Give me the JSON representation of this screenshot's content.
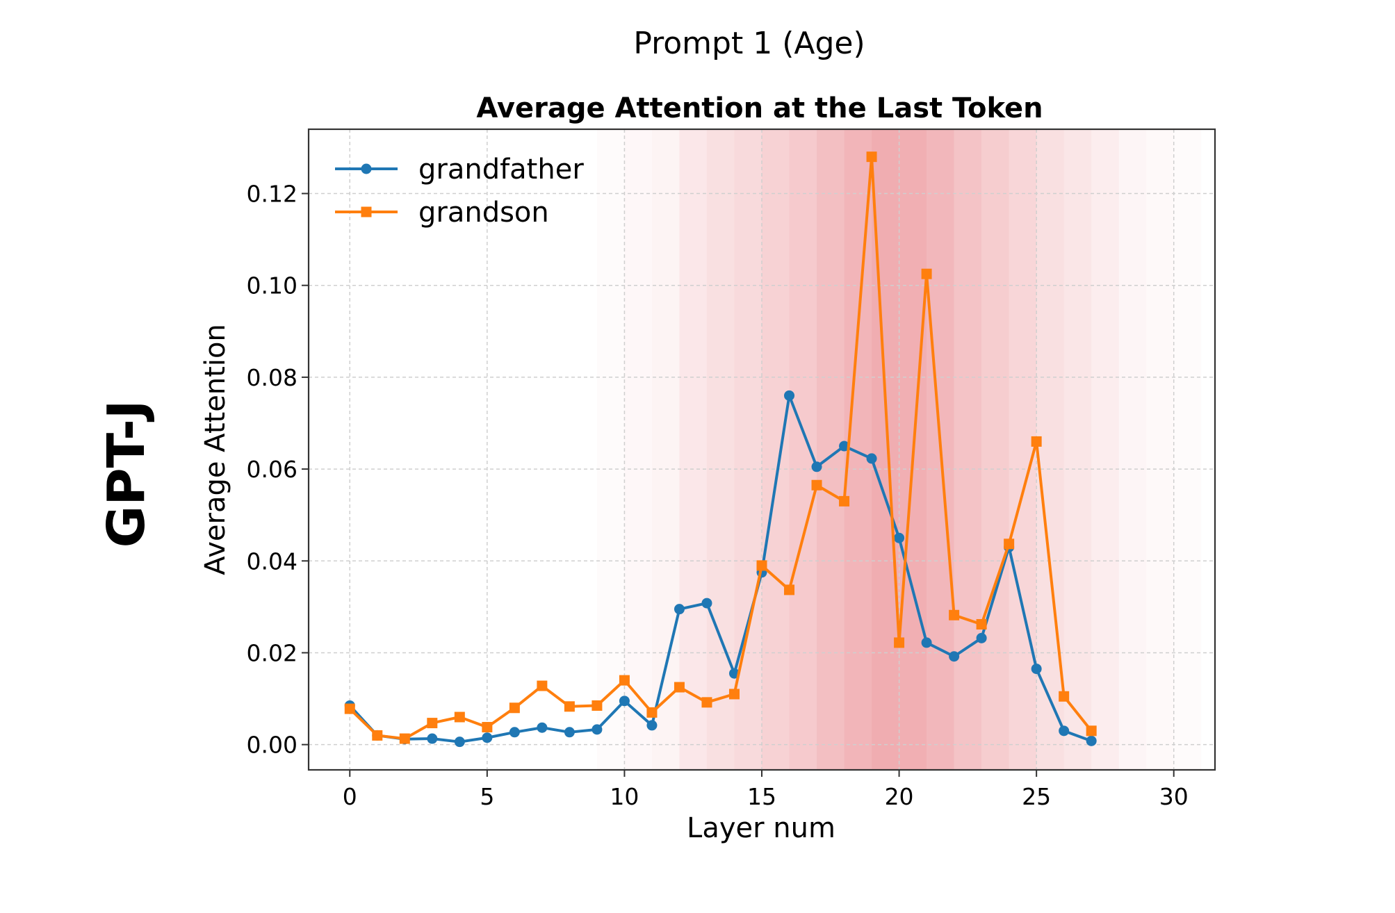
{
  "figure": {
    "title": "Prompt 1 (Age)",
    "row_label": "GPT-J"
  },
  "chart_data": {
    "type": "line",
    "title": "Average Attention at the Last Token",
    "xlabel": "Layer num",
    "ylabel": "Average Attention",
    "xlim": [
      -1.5,
      31.5
    ],
    "ylim": [
      -0.0055,
      0.134
    ],
    "xticks": [
      0,
      5,
      10,
      15,
      20,
      25,
      30
    ],
    "xtick_labels": [
      "0",
      "5",
      "10",
      "15",
      "20",
      "25",
      "30"
    ],
    "yticks": [
      0.0,
      0.02,
      0.04,
      0.06,
      0.08,
      0.1,
      0.12
    ],
    "ytick_labels": [
      "0.00",
      "0.02",
      "0.04",
      "0.06",
      "0.08",
      "0.10",
      "0.12"
    ],
    "grid": true,
    "legend_position": "top-left",
    "x": [
      0,
      1,
      2,
      3,
      4,
      5,
      6,
      7,
      8,
      9,
      10,
      11,
      12,
      13,
      14,
      15,
      16,
      17,
      18,
      19,
      20,
      21,
      22,
      23,
      24,
      25,
      26,
      27
    ],
    "series": [
      {
        "name": "grandfather",
        "color": "#1f77b4",
        "marker": "circle",
        "values": [
          0.0085,
          0.002,
          0.0012,
          0.0013,
          0.0006,
          0.0015,
          0.0027,
          0.0037,
          0.0027,
          0.0033,
          0.0095,
          0.0042,
          0.0295,
          0.0308,
          0.0155,
          0.0375,
          0.076,
          0.0605,
          0.065,
          0.0623,
          0.045,
          0.0222,
          0.0192,
          0.0232,
          0.043,
          0.0165,
          0.003,
          0.0008
        ]
      },
      {
        "name": "grandson",
        "color": "#ff7f0e",
        "marker": "square",
        "values": [
          0.0078,
          0.002,
          0.0013,
          0.0047,
          0.006,
          0.0038,
          0.008,
          0.0128,
          0.0083,
          0.0085,
          0.014,
          0.007,
          0.0125,
          0.0092,
          0.011,
          0.039,
          0.0337,
          0.0565,
          0.053,
          0.128,
          0.0222,
          0.1025,
          0.0282,
          0.0262,
          0.0437,
          0.066,
          0.0105,
          0.003
        ]
      }
    ],
    "background_heatmap": {
      "color": "#dc3c46",
      "x_start": [
        9,
        10,
        11,
        12,
        13,
        14,
        15,
        16,
        17,
        18,
        19,
        20,
        21,
        22,
        23,
        24,
        25,
        26,
        27,
        28,
        29,
        30
      ],
      "intensity": [
        0.02,
        0.04,
        0.06,
        0.12,
        0.16,
        0.19,
        0.23,
        0.27,
        0.33,
        0.38,
        0.42,
        0.41,
        0.37,
        0.31,
        0.26,
        0.21,
        0.16,
        0.13,
        0.09,
        0.05,
        0.03,
        0.02
      ]
    }
  }
}
